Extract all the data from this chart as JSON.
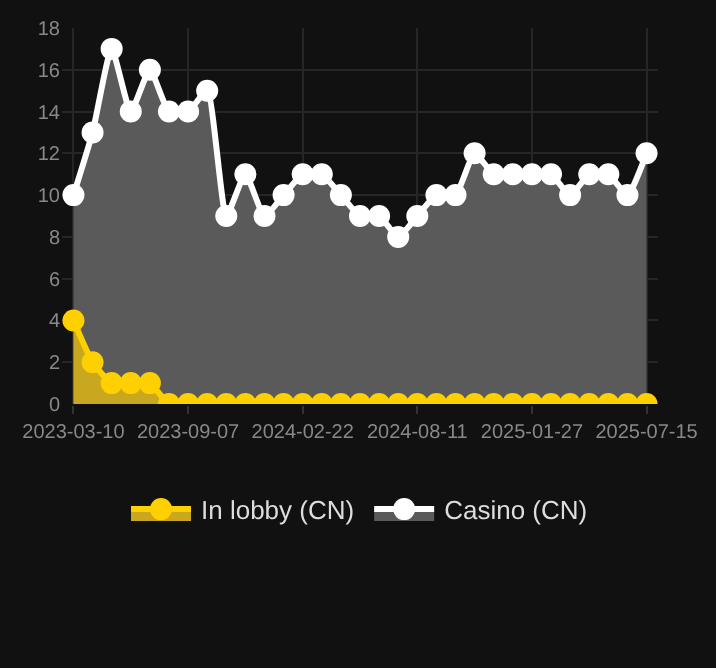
{
  "chart_data": {
    "type": "area",
    "categories": [
      "2023-03-10",
      null,
      null,
      null,
      null,
      null,
      "2023-09-07",
      null,
      null,
      null,
      null,
      null,
      "2024-02-22",
      null,
      null,
      null,
      null,
      null,
      "2024-08-11",
      null,
      null,
      null,
      null,
      null,
      "2025-01-27",
      null,
      null,
      null,
      null,
      null,
      "2025-07-15"
    ],
    "series": [
      {
        "name": "In lobby (CN)",
        "color": "#ffd000",
        "values": [
          4,
          2,
          1,
          1,
          1,
          0,
          0,
          0,
          0,
          0,
          0,
          0,
          0,
          0,
          0,
          0,
          0,
          0,
          0,
          0,
          0,
          0,
          0,
          0,
          0,
          0,
          0,
          0,
          0,
          0,
          0
        ]
      },
      {
        "name": "Casino (CN)",
        "color": "#ffffff",
        "values": [
          10,
          13,
          17,
          14,
          16,
          14,
          14,
          15,
          9,
          11,
          9,
          10,
          11,
          11,
          10,
          9,
          9,
          8,
          9,
          10,
          10,
          12,
          11,
          11,
          11,
          11,
          10,
          11,
          11,
          10,
          12
        ]
      }
    ],
    "ylim": [
      0,
      18
    ],
    "yticks": [
      0,
      2,
      4,
      6,
      8,
      10,
      12,
      14,
      16,
      18
    ],
    "grid": true,
    "legend": "bottom",
    "marker": "circle",
    "line_style": "solid"
  }
}
